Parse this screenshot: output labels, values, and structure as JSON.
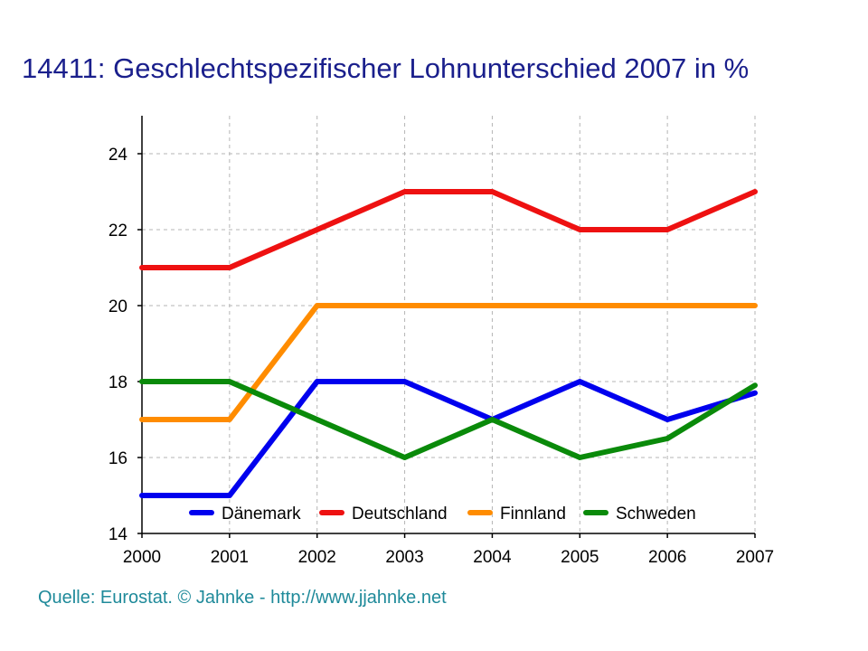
{
  "chart_data": {
    "type": "line",
    "title": "14411: Geschlechtspezifischer Lohnunterschied 2007 in %",
    "x": [
      "2000",
      "2001",
      "2002",
      "2003",
      "2004",
      "2005",
      "2006",
      "2007"
    ],
    "xlabel": "",
    "ylabel": "",
    "ylim": [
      14,
      25
    ],
    "yticks": [
      14,
      16,
      18,
      20,
      22,
      24
    ],
    "grid": true,
    "legend_position": "bottom",
    "series": [
      {
        "name": "Dänemark",
        "color": "#0000ee",
        "values": [
          15,
          15,
          18,
          18,
          17,
          18,
          17,
          17.7
        ]
      },
      {
        "name": "Deutschland",
        "color": "#ee1111",
        "values": [
          21,
          21,
          22,
          23,
          23,
          22,
          22,
          23
        ]
      },
      {
        "name": "Finnland",
        "color": "#ff8c00",
        "values": [
          17,
          17,
          20,
          20,
          20,
          20,
          20,
          20
        ]
      },
      {
        "name": "Schweden",
        "color": "#0a8a0a",
        "values": [
          18,
          18,
          17,
          16,
          17,
          16,
          16.5,
          17.9
        ]
      }
    ]
  },
  "source_note": "Quelle: Eurostat. © Jahnke - http://www.jjahnke.net"
}
